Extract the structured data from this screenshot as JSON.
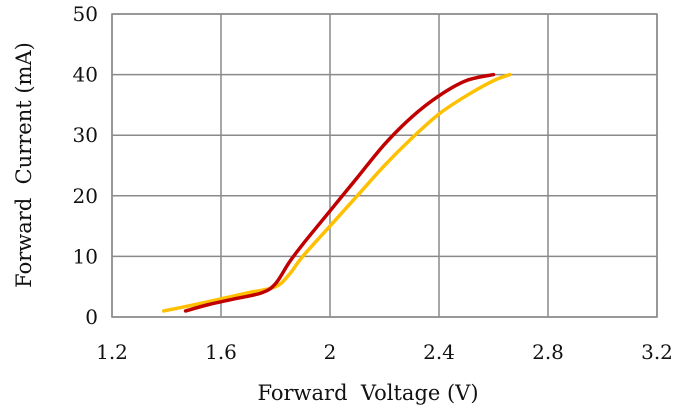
{
  "chart_data": {
    "type": "line",
    "title": "",
    "xlabel": "Forward  Voltage (V)",
    "ylabel": "Forward  Current (mA)",
    "xlim": [
      1.2,
      3.2
    ],
    "ylim": [
      0,
      50
    ],
    "x_ticks": [
      1.2,
      1.6,
      2.0,
      2.4,
      2.8,
      3.2
    ],
    "x_tick_labels": [
      "1.2",
      "1.6",
      "2",
      "2.4",
      "2.8",
      "3.2"
    ],
    "y_ticks": [
      0,
      10,
      20,
      30,
      40,
      50
    ],
    "y_tick_labels": [
      "0",
      "10",
      "20",
      "30",
      "40",
      "50"
    ],
    "grid": true,
    "legend": "none",
    "series": [
      {
        "color": "#c00000",
        "x": [
          1.47,
          1.55,
          1.65,
          1.75,
          1.8,
          1.85,
          1.9,
          2.0,
          2.1,
          2.2,
          2.3,
          2.4,
          2.5,
          2.6
        ],
        "y": [
          1,
          2,
          3,
          4,
          5.5,
          9,
          12,
          17.5,
          23,
          28.5,
          33,
          36.5,
          39,
          40
        ]
      },
      {
        "color": "#ffc000",
        "x": [
          1.39,
          1.5,
          1.6,
          1.7,
          1.8,
          1.85,
          1.9,
          2.0,
          2.1,
          2.2,
          2.3,
          2.4,
          2.5,
          2.6,
          2.66
        ],
        "y": [
          1,
          2,
          3,
          4,
          5,
          7,
          10,
          15,
          20,
          25,
          29.5,
          33.5,
          36.5,
          39,
          40
        ]
      }
    ]
  }
}
